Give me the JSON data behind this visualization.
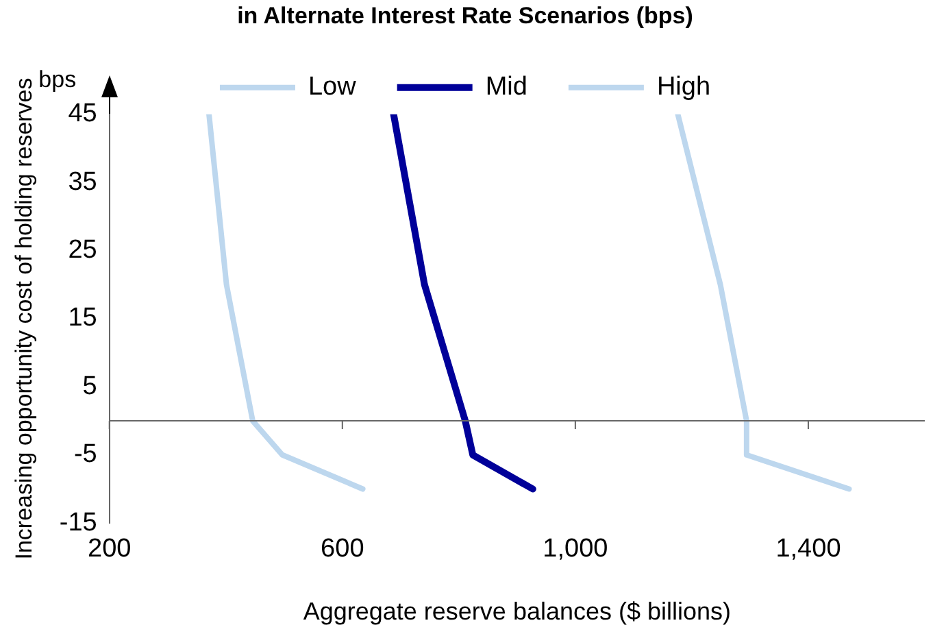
{
  "chart_data": {
    "type": "line",
    "title": "in Alternate Interest Rate Scenarios (bps)",
    "xlabel": "Aggregate reserve balances ($ billions)",
    "ylabel": "Increasing opportunity cost of holding reserves",
    "annotations": [
      "bps"
    ],
    "series": [
      {
        "name": "Low",
        "color": "#bdd7ee",
        "x": [
          371,
          401,
          446,
          497,
          635
        ],
        "values": [
          45,
          20,
          0,
          -5,
          -10
        ]
      },
      {
        "name": "Mid",
        "color": "#000099",
        "x": [
          688,
          741,
          811,
          824,
          927
        ],
        "values": [
          45,
          20,
          0,
          -5,
          -10
        ]
      },
      {
        "name": "High",
        "color": "#bdd7ee",
        "x": [
          1176,
          1249,
          1294,
          1294,
          1470
        ],
        "values": [
          45,
          20,
          0,
          -5,
          -10
        ]
      }
    ],
    "xlim": [
      200,
      1600
    ],
    "xticks": [
      200,
      600,
      {
        "value": 1000,
        "label": "1,000"
      },
      {
        "value": 1400,
        "label": "1,400"
      }
    ],
    "ylim": [
      -15,
      45
    ],
    "yticks": [
      -15,
      -5,
      5,
      15,
      25,
      35,
      45
    ],
    "grid": false,
    "legend": "top",
    "marker": "none",
    "line_style": "solid"
  }
}
